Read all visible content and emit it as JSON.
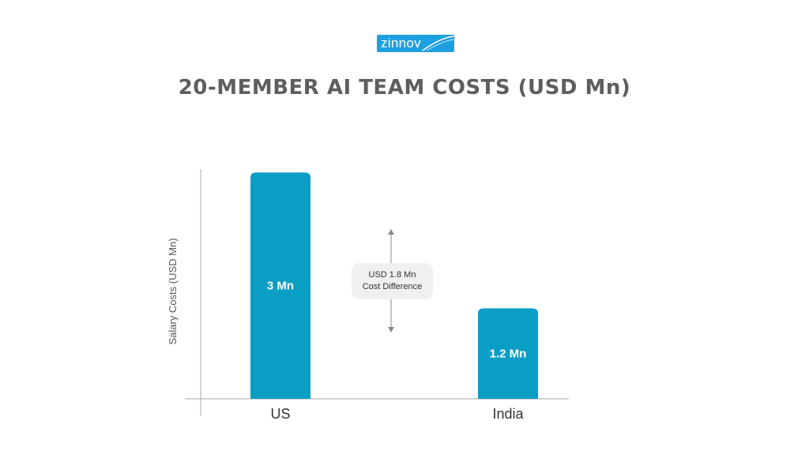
{
  "logo": {
    "text": "zinnov"
  },
  "colors": {
    "bar": "#0a9ec5",
    "axis": "#aaaaaa",
    "title": "#5e5e5e",
    "annotation_bg": "#f0f0f0",
    "arrow": "#888888"
  },
  "chart_data": {
    "type": "bar",
    "title": "20-MEMBER AI TEAM COSTS (USD Mn)",
    "xlabel": "",
    "ylabel": "Salary Costs (USD Mn)",
    "categories": [
      "US",
      "India"
    ],
    "values": [
      3,
      1.2
    ],
    "data_labels": [
      "3 Mn",
      "1.2 Mn"
    ],
    "ylim": [
      0,
      3.15
    ],
    "grid": false,
    "annotation": {
      "line1": "USD 1.8 Mn",
      "line2": "Cost Difference",
      "value": 1.8
    }
  }
}
